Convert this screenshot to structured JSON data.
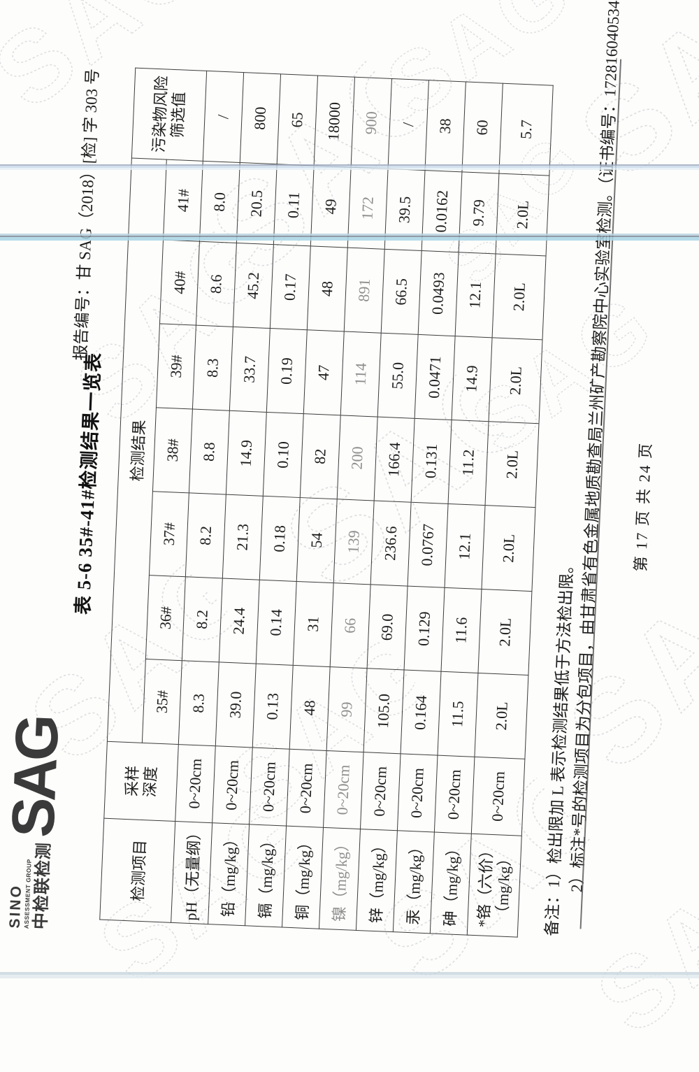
{
  "page": {
    "report_no": "报告编号：甘 SAG（2018）[检] 字 303 号",
    "logo": {
      "sino": "SINO",
      "assessment_group": "ASSESSMENT GROUP",
      "cn_name": "中检联检测",
      "sag": "SAG",
      "color": "#3a3a3a"
    },
    "title": "表 5-6  35#-41#检测结果一览表",
    "watermark_text": "SAG",
    "notes": {
      "line1": "备注：1）检出限加 L 表示检测结果低于方法检出限。",
      "line2": "2）标注*号的检测项目为分包项目，由甘肃省有色金属地质勘查局兰州矿产勘察院中心实验室检测。（证书编号：172816040534）。"
    },
    "footer": "第 17 页 共 24 页",
    "ink_color": "#1d1d1d",
    "streak_colors": [
      "#9aa6bb",
      "#a8d4e4",
      "#c3d2dc"
    ]
  },
  "table": {
    "headers": {
      "item": "检测项目",
      "depth_line1": "采样",
      "depth_line2": "深度",
      "results_group": "检测结果",
      "screening_line1": "污染物风险",
      "screening_line2": "筛选值",
      "samples": [
        "35#",
        "36#",
        "37#",
        "38#",
        "39#",
        "40#",
        "41#"
      ]
    },
    "rows": [
      {
        "item": "pH（无量纲）",
        "item2": "",
        "depth": "0~20cm",
        "values": [
          "8.3",
          "8.2",
          "8.2",
          "8.8",
          "8.3",
          "8.6",
          "8.0"
        ],
        "screening": "/",
        "faint": false
      },
      {
        "item": "铅（mg/kg）",
        "item2": "",
        "depth": "0~20cm",
        "values": [
          "39.0",
          "24.4",
          "21.3",
          "14.9",
          "33.7",
          "45.2",
          "20.5"
        ],
        "screening": "800",
        "faint": false
      },
      {
        "item": "镉（mg/kg）",
        "item2": "",
        "depth": "0~20cm",
        "values": [
          "0.13",
          "0.14",
          "0.18",
          "0.10",
          "0.19",
          "0.17",
          "0.11"
        ],
        "screening": "65",
        "faint": false
      },
      {
        "item": "铜（mg/kg）",
        "item2": "",
        "depth": "0~20cm",
        "values": [
          "48",
          "31",
          "54",
          "82",
          "47",
          "48",
          "49"
        ],
        "screening": "18000",
        "faint": false
      },
      {
        "item": "镍（mg/kg）",
        "item2": "",
        "depth": "0~20cm",
        "values": [
          "99",
          "66",
          "139",
          "200",
          "114",
          "891",
          "172"
        ],
        "screening": "900",
        "faint": true
      },
      {
        "item": "锌（mg/kg）",
        "item2": "",
        "depth": "0~20cm",
        "values": [
          "105.0",
          "69.0",
          "236.6",
          "166.4",
          "55.0",
          "66.5",
          "39.5"
        ],
        "screening": "/",
        "faint": false
      },
      {
        "item": "汞（mg/kg）",
        "item2": "",
        "depth": "0~20cm",
        "values": [
          "0.164",
          "0.129",
          "0.0767",
          "0.131",
          "0.0471",
          "0.0493",
          "0.0162"
        ],
        "screening": "38",
        "faint": false
      },
      {
        "item": "砷（mg/kg）",
        "item2": "",
        "depth": "0~20cm",
        "values": [
          "11.5",
          "11.6",
          "12.1",
          "11.2",
          "14.9",
          "12.1",
          "9.79"
        ],
        "screening": "60",
        "faint": false
      },
      {
        "item": "*铬（六价）",
        "item2": "（mg/kg）",
        "depth": "0~20cm",
        "values": [
          "2.0L",
          "2.0L",
          "2.0L",
          "2.0L",
          "2.0L",
          "2.0L",
          "2.0L"
        ],
        "screening": "5.7",
        "faint": false
      }
    ]
  }
}
